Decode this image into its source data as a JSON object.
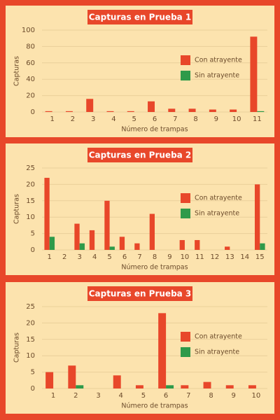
{
  "chart_data": [
    {
      "type": "bar",
      "title": "Capturas en Prueba 1",
      "xlabel": "Número de trampas",
      "ylabel": "Capturas",
      "categories": [
        "1",
        "2",
        "3",
        "4",
        "5",
        "6",
        "7",
        "8",
        "9",
        "10",
        "11"
      ],
      "series": [
        {
          "name": "Con atrayente",
          "color": "#e8472a",
          "values": [
            1,
            1,
            16,
            1,
            1,
            13,
            4,
            4,
            3,
            3,
            92
          ]
        },
        {
          "name": "Sin atrayente",
          "color": "#2e9a4a",
          "values": [
            0,
            0,
            0,
            0,
            0,
            0,
            0,
            0,
            0,
            0,
            1
          ]
        }
      ],
      "ylim": [
        0,
        100
      ],
      "yticks": [
        0,
        20,
        40,
        60,
        80,
        100
      ],
      "grid": true,
      "legend": "right"
    },
    {
      "type": "bar",
      "title": "Capturas en Prueba 2",
      "xlabel": "Número de trampas",
      "ylabel": "Capturas",
      "categories": [
        "1",
        "2",
        "3",
        "4",
        "5",
        "6",
        "7",
        "8",
        "9",
        "10",
        "11",
        "12",
        "13",
        "14",
        "15"
      ],
      "series": [
        {
          "name": "Con atrayente",
          "color": "#e8472a",
          "values": [
            22,
            0,
            8,
            6,
            15,
            4,
            2,
            11,
            0,
            3,
            3,
            0,
            1,
            0,
            20
          ]
        },
        {
          "name": "Sin atrayente",
          "color": "#2e9a4a",
          "values": [
            4,
            0,
            2,
            0,
            1,
            0,
            0,
            0,
            0,
            0,
            0,
            0,
            0,
            0,
            2
          ]
        }
      ],
      "ylim": [
        0,
        25
      ],
      "yticks": [
        0,
        5,
        10,
        15,
        20,
        25
      ],
      "grid": true,
      "legend": "right"
    },
    {
      "type": "bar",
      "title": "Capturas en Prueba 3",
      "xlabel": "Número de trampas",
      "ylabel": "Capturas",
      "categories": [
        "1",
        "2",
        "3",
        "4",
        "5",
        "6",
        "7",
        "8",
        "9",
        "10"
      ],
      "series": [
        {
          "name": "Con atrayente",
          "color": "#e8472a",
          "values": [
            5,
            7,
            0,
            4,
            1,
            23,
            1,
            2,
            1,
            1
          ]
        },
        {
          "name": "Sin atrayente",
          "color": "#2e9a4a",
          "values": [
            0,
            1,
            0,
            0,
            0,
            1,
            0,
            0,
            0,
            0
          ]
        }
      ],
      "ylim": [
        0,
        25
      ],
      "yticks": [
        0,
        5,
        10,
        15,
        20,
        25
      ],
      "grid": true,
      "legend": "right"
    }
  ]
}
